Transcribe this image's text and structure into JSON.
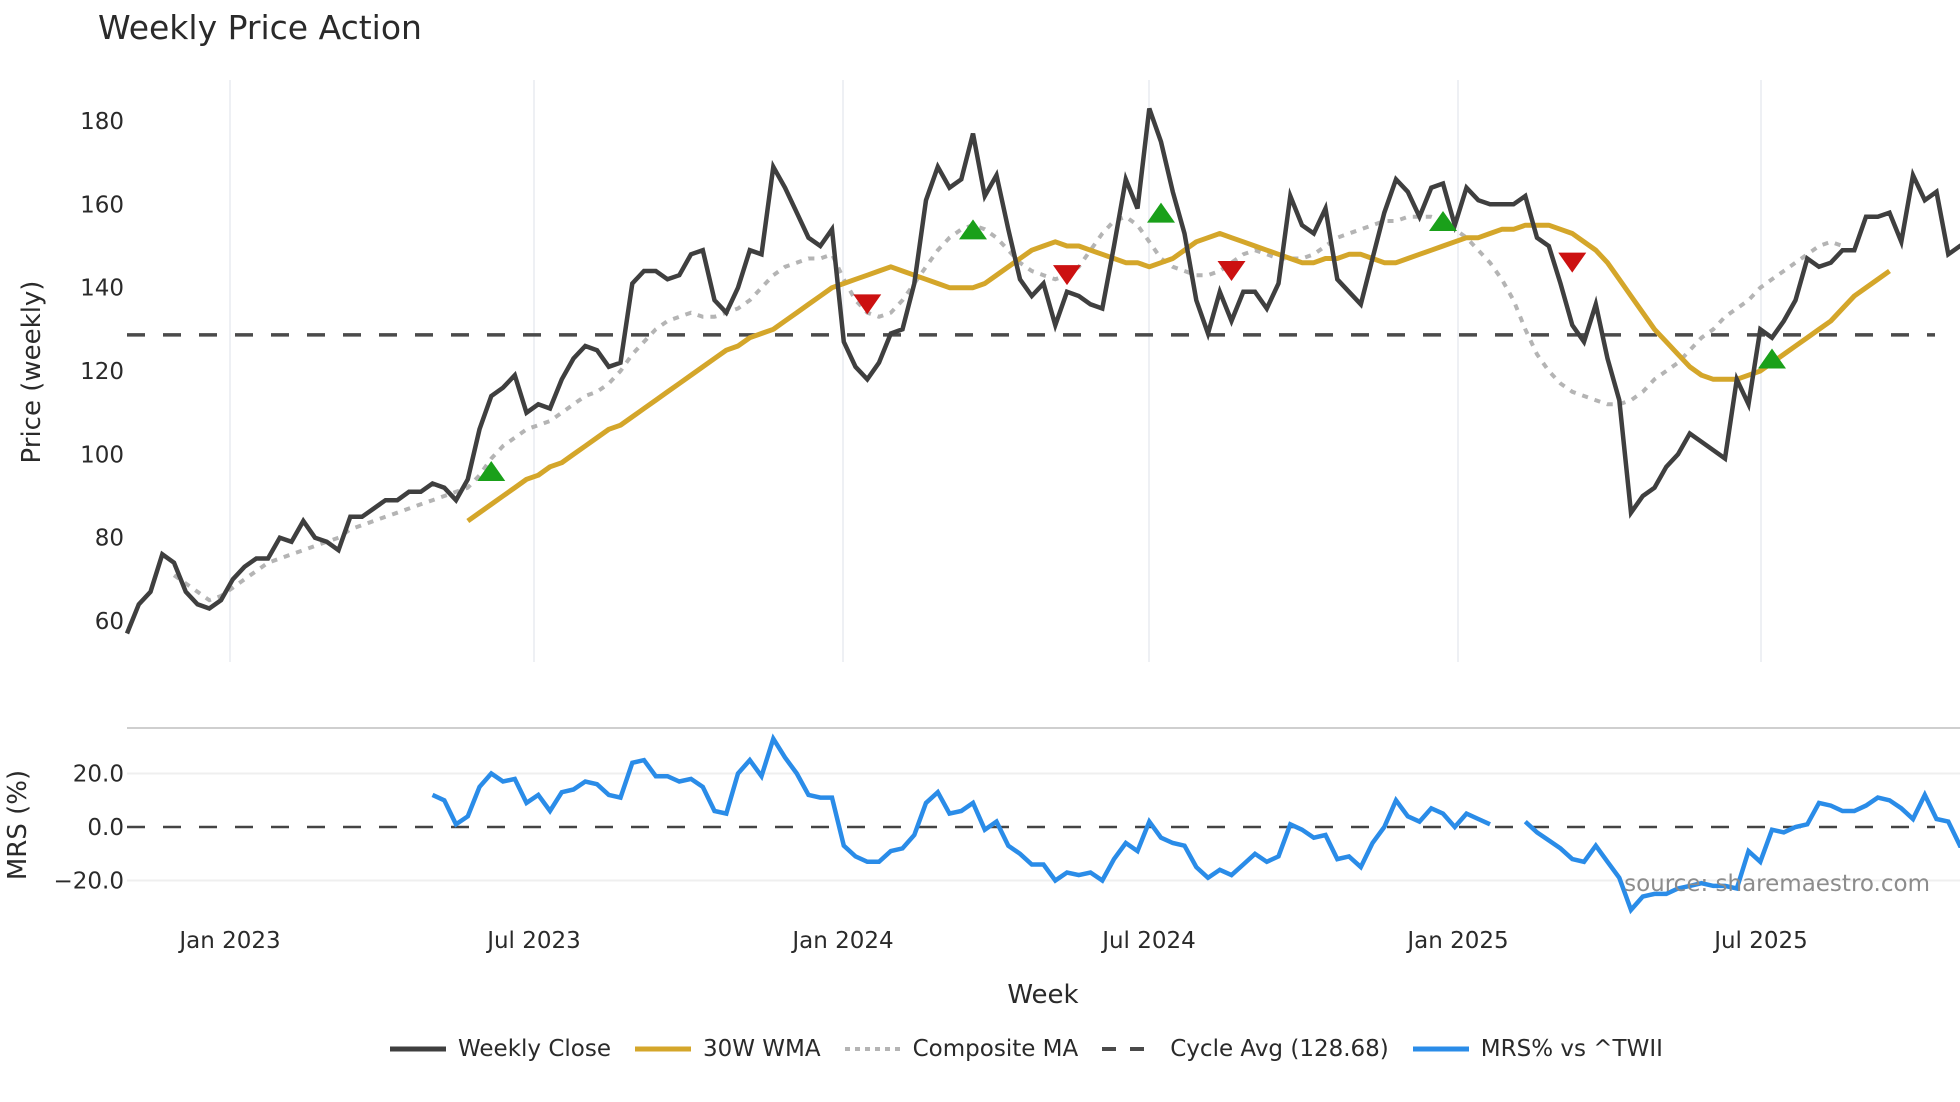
{
  "title": "Weekly Price Action",
  "source_note": "source: sharemaestro.com",
  "legend": [
    {
      "label": "Weekly Close",
      "color": "#3f3f3f",
      "style": "solid"
    },
    {
      "label": "30W WMA",
      "color": "#d4a62a",
      "style": "solid"
    },
    {
      "label": "Composite MA",
      "color": "#b4b4b4",
      "style": "dotted"
    },
    {
      "label": "Cycle Avg (128.68)",
      "color": "#4a4a4a",
      "style": "dashed"
    },
    {
      "label": "MRS% vs ^TWII",
      "color": "#2a8ce8",
      "style": "solid"
    }
  ],
  "chart_data": [
    {
      "type": "line",
      "title": "Weekly Price Action",
      "xlabel": "Week",
      "ylabel": "Price (weekly)",
      "ylim": [
        52,
        190
      ],
      "yticks": [
        60,
        80,
        100,
        120,
        140,
        160,
        180
      ],
      "xticks": [
        "Jan 2023",
        "Jul 2023",
        "Jan 2024",
        "Jul 2024",
        "Jan 2025",
        "Jul 2025"
      ],
      "grid": "vertical",
      "x_start": "2022-10-31",
      "x_step": "1 week",
      "series": [
        {
          "name": "Weekly Close",
          "values": [
            57,
            64,
            67,
            76,
            74,
            67,
            64,
            63,
            65,
            70,
            73,
            75,
            75,
            80,
            79,
            84,
            80,
            79,
            77,
            85,
            85,
            87,
            89,
            89,
            91,
            91,
            93,
            92,
            89,
            94,
            106,
            114,
            116,
            119,
            110,
            112,
            111,
            118,
            123,
            126,
            125,
            121,
            122,
            141,
            144,
            144,
            142,
            143,
            148,
            149,
            137,
            134,
            140,
            149,
            148,
            169,
            164,
            158,
            152,
            150,
            154,
            127,
            121,
            118,
            122,
            129,
            130,
            141,
            161,
            169,
            164,
            166,
            177,
            162,
            167,
            154,
            142,
            138,
            141,
            131,
            139,
            138,
            136,
            135,
            150,
            166,
            159,
            183,
            175,
            163,
            153,
            137,
            129,
            139,
            132,
            139,
            139,
            135,
            141,
            162,
            155,
            153,
            159,
            142,
            139,
            136,
            147,
            158,
            166,
            163,
            157,
            164,
            165,
            155,
            164,
            161,
            160,
            160,
            160,
            162,
            152,
            150,
            141,
            131,
            127,
            136,
            123,
            113,
            86,
            90,
            92,
            97,
            100,
            105,
            103,
            101,
            99,
            118,
            112,
            130,
            128,
            132,
            137,
            147,
            145,
            146,
            149,
            149,
            157,
            157,
            158,
            151,
            167,
            161,
            163,
            148,
            150,
            149
          ]
        },
        {
          "name": "30W WMA",
          "start_index": 29,
          "values": [
            84,
            86,
            88,
            90,
            92,
            94,
            95,
            97,
            98,
            100,
            102,
            104,
            106,
            107,
            109,
            111,
            113,
            115,
            117,
            119,
            121,
            123,
            125,
            126,
            128,
            129,
            130,
            132,
            134,
            136,
            138,
            140,
            141,
            142,
            143,
            144,
            145,
            144,
            143,
            142,
            141,
            140,
            140,
            140,
            141,
            143,
            145,
            147,
            149,
            150,
            151,
            150,
            150,
            149,
            148,
            147,
            146,
            146,
            145,
            146,
            147,
            149,
            151,
            152,
            153,
            152,
            151,
            150,
            149,
            148,
            147,
            146,
            146,
            147,
            147,
            148,
            148,
            147,
            146,
            146,
            147,
            148,
            149,
            150,
            151,
            152,
            152,
            153,
            154,
            154,
            155,
            155,
            155,
            154,
            153,
            151,
            149,
            146,
            142,
            138,
            134,
            130,
            127,
            124,
            121,
            119,
            118,
            118,
            118,
            119,
            120,
            122,
            124,
            126,
            128,
            130,
            132,
            135,
            138,
            140,
            142,
            144
          ]
        },
        {
          "name": "Composite MA",
          "start_index": 4,
          "values": [
            71,
            69,
            67,
            65,
            66,
            68,
            70,
            72,
            74,
            75,
            76,
            77,
            78,
            79,
            80,
            82,
            83,
            84,
            85,
            86,
            87,
            88,
            89,
            90,
            91,
            92,
            95,
            99,
            102,
            104,
            106,
            107,
            108,
            110,
            112,
            114,
            115,
            117,
            120,
            124,
            127,
            130,
            132,
            133,
            134,
            133,
            133,
            134,
            135,
            137,
            140,
            143,
            145,
            146,
            147,
            147,
            148,
            142,
            137,
            134,
            133,
            134,
            137,
            141,
            145,
            149,
            152,
            154,
            155,
            154,
            152,
            149,
            146,
            144,
            143,
            142,
            143,
            145,
            149,
            153,
            156,
            157,
            155,
            151,
            147,
            145,
            144,
            143,
            143,
            144,
            146,
            148,
            149,
            148,
            147,
            147,
            147,
            148,
            150,
            152,
            153,
            154,
            155,
            156,
            156,
            157,
            157,
            157,
            156,
            154,
            152,
            149,
            146,
            142,
            137,
            130,
            124,
            120,
            117,
            115,
            114,
            113,
            112,
            112,
            113,
            115,
            118,
            120,
            122,
            125,
            128,
            130,
            133,
            135,
            137,
            140,
            142,
            144,
            146,
            148,
            150,
            151,
            150
          ]
        },
        {
          "name": "Cycle Avg",
          "constant": 128.68
        },
        {
          "name": "Signals Buy",
          "marker": "triangle-up",
          "color": "#1aa01a",
          "points": [
            {
              "x_index": 31,
              "y": 96
            },
            {
              "x_index": 72,
              "y": 154
            },
            {
              "x_index": 88,
              "y": 158
            },
            {
              "x_index": 112,
              "y": 156
            },
            {
              "x_index": 140,
              "y": 123
            }
          ]
        },
        {
          "name": "Signals Sell",
          "marker": "triangle-down",
          "color": "#cc1111",
          "points": [
            {
              "x_index": 63,
              "y": 136
            },
            {
              "x_index": 80,
              "y": 143
            },
            {
              "x_index": 94,
              "y": 144
            },
            {
              "x_index": 123,
              "y": 146
            }
          ]
        }
      ]
    },
    {
      "type": "line",
      "title": "",
      "xlabel": "Week",
      "ylabel": "MRS (%)",
      "ylim": [
        -35,
        38
      ],
      "yticks": [
        "20.0",
        "0.0",
        "−20.0"
      ],
      "zero_line": true,
      "series": [
        {
          "name": "MRS% vs ^TWII",
          "start_index": 26,
          "values": [
            12,
            10,
            1,
            4,
            15,
            20,
            17,
            18,
            9,
            12,
            6,
            13,
            14,
            17,
            16,
            12,
            11,
            24,
            25,
            19,
            19,
            17,
            18,
            15,
            6,
            5,
            20,
            25,
            19,
            33,
            26,
            20,
            12,
            11,
            11,
            -7,
            -11,
            -13,
            -13,
            -9,
            -8,
            -3,
            9,
            13,
            5,
            6,
            9,
            -1,
            2,
            -7,
            -10,
            -14,
            -14,
            -20,
            -17,
            -18,
            -17,
            -20,
            -12,
            -6,
            -9,
            2,
            -4,
            -6,
            -7,
            -15,
            -19,
            -16,
            -18,
            -14,
            -10,
            -13,
            -11,
            1,
            -1,
            -4,
            -3,
            -12,
            -11,
            -15,
            -6,
            0,
            10,
            4,
            2,
            7,
            5,
            0,
            5,
            3,
            1,
            null,
            null,
            2,
            -2,
            -5,
            -8,
            -12,
            -13,
            -7,
            -13,
            -19,
            -31,
            -26,
            -25,
            -25,
            -23,
            -22,
            -21,
            -22,
            -22,
            -23,
            -9,
            -13,
            -1,
            -2,
            0,
            1,
            9,
            8,
            6,
            6,
            8,
            11,
            10,
            7,
            3,
            12,
            3,
            2,
            -7,
            -7,
            -8
          ]
        }
      ]
    }
  ],
  "axes": {
    "price_yticks": [
      "60",
      "80",
      "100",
      "120",
      "140",
      "160",
      "180"
    ],
    "mrs_yticks": [
      "20.0",
      "0.0",
      "−20.0"
    ],
    "xticks": [
      "Jan 2023",
      "Jul 2023",
      "Jan 2024",
      "Jul 2024",
      "Jan 2025",
      "Jul 2025"
    ],
    "price_ylabel": "Price (weekly)",
    "mrs_ylabel": "MRS (%)",
    "xlabel": "Week"
  }
}
